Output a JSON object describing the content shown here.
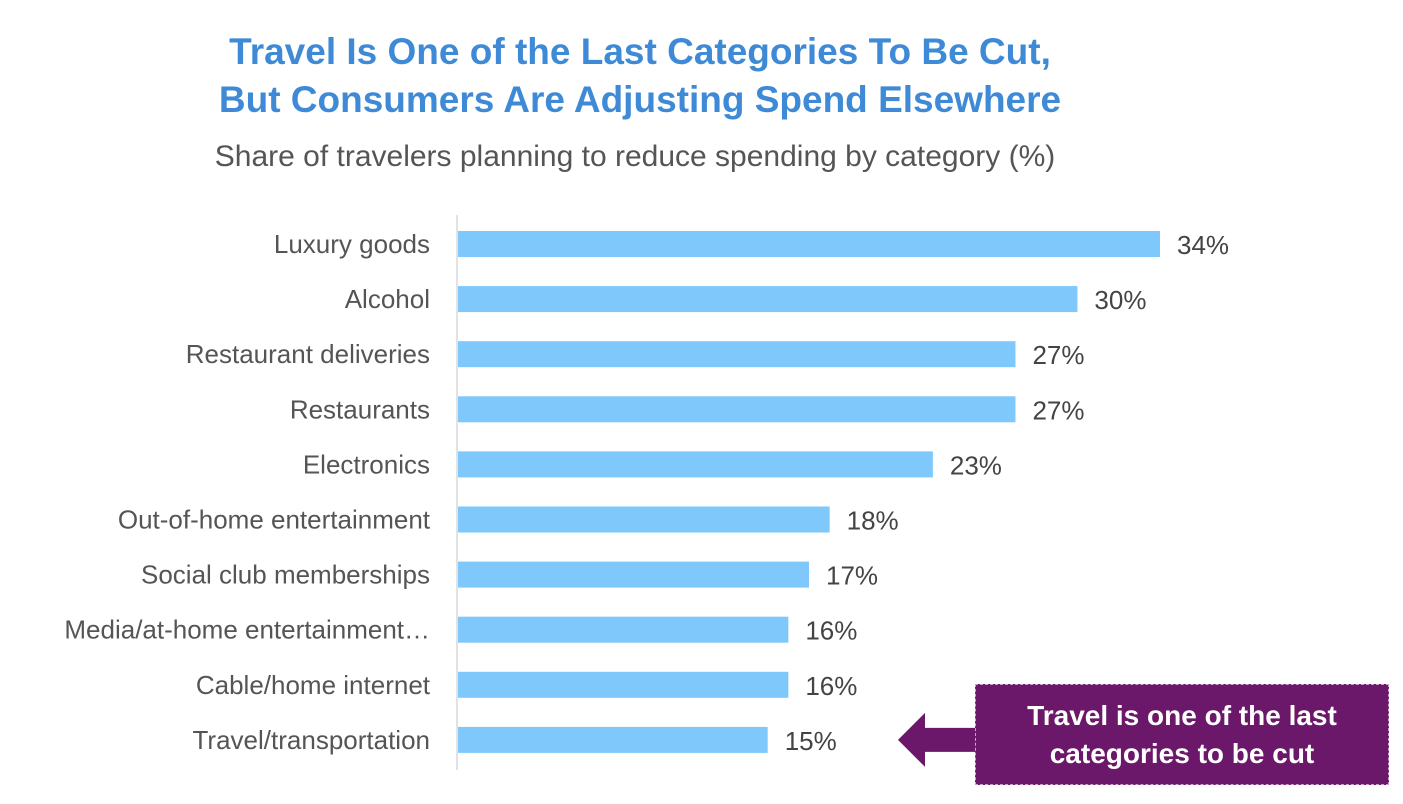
{
  "chart_data": {
    "type": "bar",
    "orientation": "horizontal",
    "title": "Travel Is One of the Last Categories To Be Cut, But Consumers Are Adjusting Spend Elsewhere",
    "title_lines": [
      "Travel Is One of the Last Categories To Be Cut,",
      "But Consumers Are Adjusting Spend Elsewhere"
    ],
    "subtitle": "Share of travelers planning to reduce spending by category (%)",
    "categories": [
      "Luxury goods",
      "Alcohol",
      "Restaurant deliveries",
      "Restaurants",
      "Electronics",
      "Out-of-home entertainment",
      "Social club memberships",
      "Media/at-home entertainment…",
      "Cable/home internet",
      "Travel/transportation"
    ],
    "values": [
      34,
      30,
      27,
      27,
      23,
      18,
      17,
      16,
      16,
      15
    ],
    "value_suffix": "%",
    "xlim": [
      0,
      34
    ],
    "grid": false,
    "bar_color": "#7ec8fb",
    "annotation": {
      "text": "Travel is one of the last categories to be cut",
      "target": "Travel/transportation",
      "color": "#6b176a"
    }
  }
}
